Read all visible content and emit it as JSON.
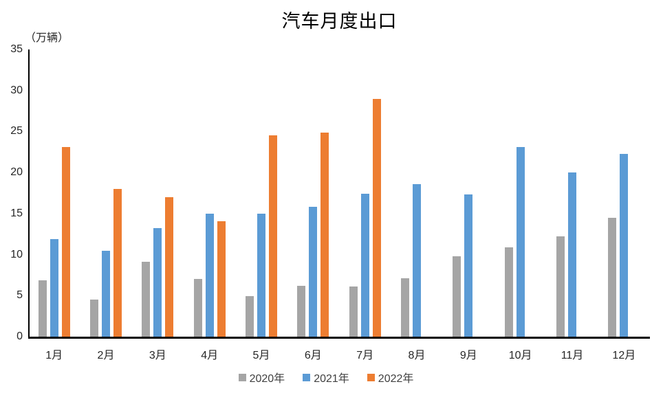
{
  "title": "汽车月度出口",
  "unit_label": "（万辆）",
  "colors": {
    "gray_2020": "#a5a5a5",
    "blue_2021": "#5b9bd5",
    "orange_2022": "#ed7d31",
    "axis": "#000000"
  },
  "chart_data": {
    "type": "bar",
    "title": "汽车月度出口",
    "unit_label": "（万辆）",
    "xlabel": "",
    "ylabel": "万辆",
    "categories": [
      "1月",
      "2月",
      "3月",
      "4月",
      "5月",
      "6月",
      "7月",
      "8月",
      "9月",
      "10月",
      "11月",
      "12月"
    ],
    "series": [
      {
        "name": "2020年",
        "color": "#a5a5a5",
        "values": [
          6.9,
          4.5,
          9.1,
          7.0,
          4.9,
          6.2,
          6.1,
          7.1,
          9.8,
          10.9,
          12.2,
          14.5
        ]
      },
      {
        "name": "2021年",
        "color": "#5b9bd5",
        "values": [
          11.9,
          10.5,
          13.2,
          15.0,
          15.0,
          15.8,
          17.4,
          18.6,
          17.3,
          23.1,
          20.0,
          22.3
        ]
      },
      {
        "name": "2022年",
        "color": "#ed7d31",
        "values": [
          23.1,
          18.0,
          17.0,
          14.1,
          24.5,
          24.9,
          29.0,
          null,
          null,
          null,
          null,
          null
        ]
      }
    ],
    "ylim": [
      0,
      35
    ],
    "yticks": [
      0,
      5,
      10,
      15,
      20,
      25,
      30,
      35
    ],
    "grid": false,
    "legend_position": "bottom",
    "legend_labels": [
      "2020年",
      "2021年",
      "2022年"
    ]
  }
}
